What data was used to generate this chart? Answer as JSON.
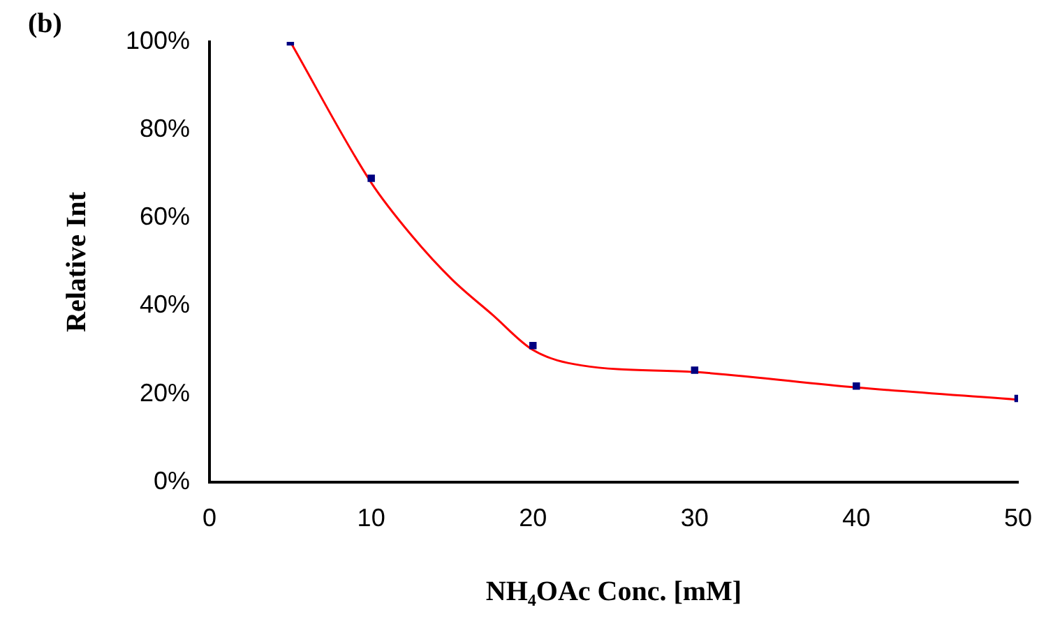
{
  "chart_data": {
    "type": "scatter",
    "annotations": [
      "(b)"
    ],
    "xlabel": "NH₄OAc Conc. [mM]",
    "ylabel": "Relative Int",
    "xlim": [
      0,
      50
    ],
    "xticks": [
      0,
      10,
      20,
      30,
      40,
      50
    ],
    "ylim": [
      0,
      100
    ],
    "yticks": [
      {
        "value": 0,
        "label": "0%"
      },
      {
        "value": 20,
        "label": "20%"
      },
      {
        "value": 40,
        "label": "40%"
      },
      {
        "value": 60,
        "label": "60%"
      },
      {
        "value": 80,
        "label": "80%"
      },
      {
        "value": 100,
        "label": "100%"
      }
    ],
    "grid": false,
    "legend": false,
    "marker": "square",
    "series": [
      {
        "type": "scatter",
        "color": "#000080",
        "x": [
          5,
          10,
          20,
          30,
          40,
          50
        ],
        "values": [
          100,
          69,
          31,
          25.4,
          21.8,
          19
        ]
      },
      {
        "type": "line",
        "color": "#ff0000",
        "marker": "none",
        "x": [
          5,
          10,
          12.5,
          15,
          17.5,
          20,
          23,
          30,
          40,
          50
        ],
        "values": [
          100,
          68,
          56,
          46,
          38,
          30,
          26.5,
          25,
          21.5,
          18.7
        ]
      }
    ]
  }
}
